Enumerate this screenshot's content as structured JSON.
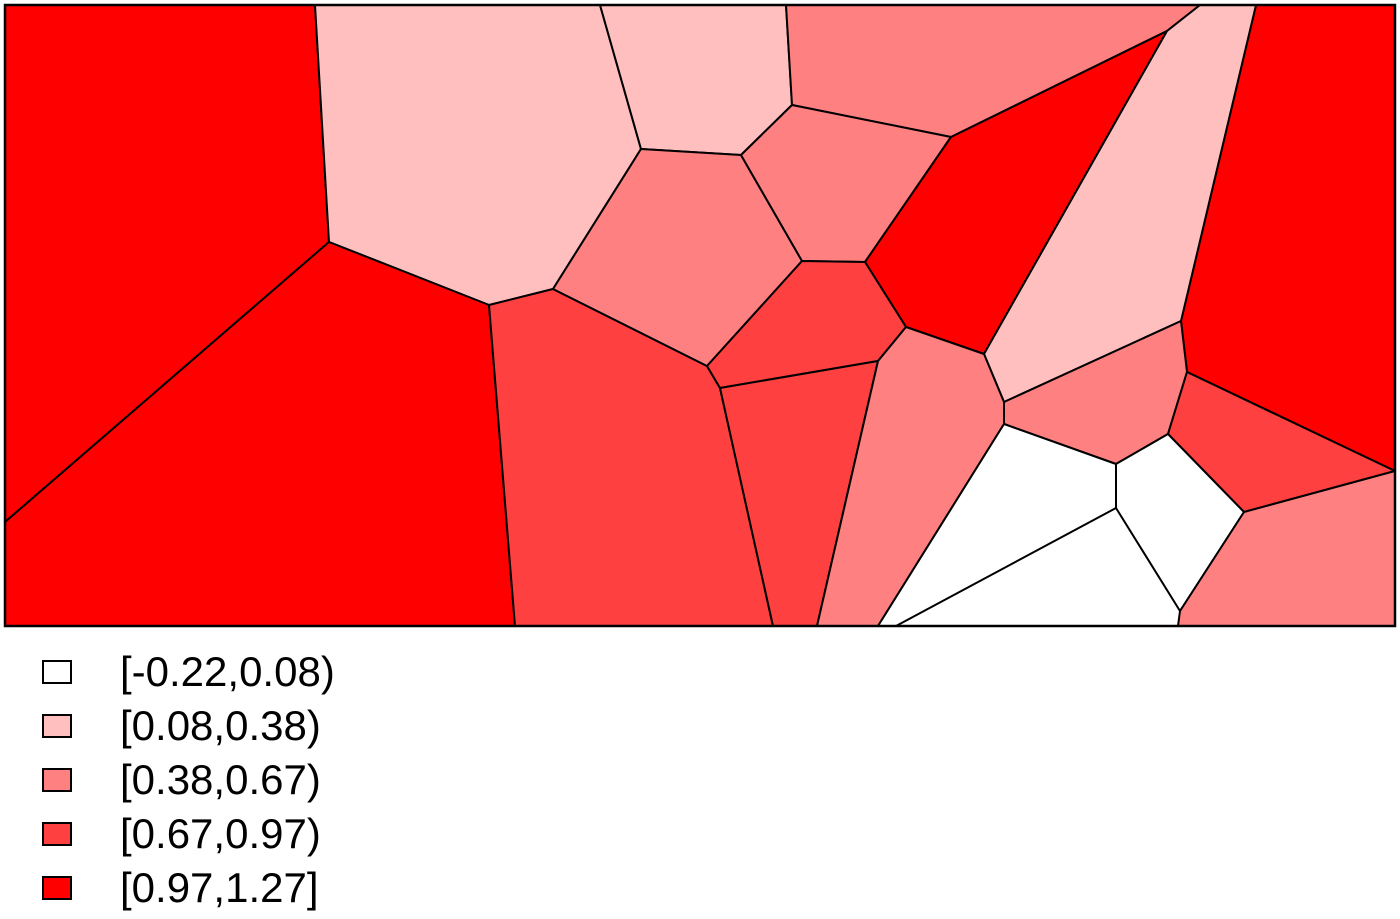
{
  "map": {
    "type": "choropleth-voronoi",
    "outline_color": "#000000",
    "classes": [
      {
        "label": "[-0.22,0.08)",
        "color": "#ffffff"
      },
      {
        "label": "[0.08,0.38)",
        "color": "#ffbfbf"
      },
      {
        "label": "[0.38,0.67)",
        "color": "#ff8080"
      },
      {
        "label": "[0.67,0.97)",
        "color": "#ff4040"
      },
      {
        "label": "[0.97,1.27]",
        "color": "#ff0000"
      }
    ],
    "cells": [
      {
        "id": "cell-1",
        "class": 4
      },
      {
        "id": "cell-2",
        "class": 1
      },
      {
        "id": "cell-3",
        "class": 1
      },
      {
        "id": "cell-4",
        "class": 2
      },
      {
        "id": "cell-5",
        "class": 4
      },
      {
        "id": "cell-6",
        "class": 3
      },
      {
        "id": "cell-7",
        "class": 2
      },
      {
        "id": "cell-8",
        "class": 2
      },
      {
        "id": "cell-9",
        "class": 4
      },
      {
        "id": "cell-10",
        "class": 4
      },
      {
        "id": "cell-11",
        "class": 3
      },
      {
        "id": "cell-12",
        "class": 1
      },
      {
        "id": "cell-13",
        "class": 3
      },
      {
        "id": "cell-14",
        "class": 2
      },
      {
        "id": "cell-15",
        "class": 2
      },
      {
        "id": "cell-16",
        "class": 3
      },
      {
        "id": "cell-17",
        "class": 0
      },
      {
        "id": "cell-18",
        "class": 0
      },
      {
        "id": "cell-19",
        "class": 2
      }
    ]
  }
}
